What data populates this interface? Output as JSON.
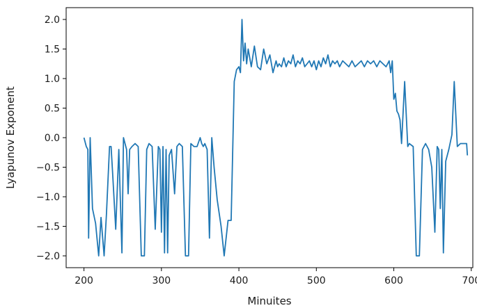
{
  "chart_data": {
    "type": "line",
    "title": "",
    "xlabel": "Minuites",
    "ylabel": "Lyapunov Exponent",
    "xlim": [
      177,
      702
    ],
    "ylim": [
      -2.2,
      2.2
    ],
    "xticks": [
      200,
      300,
      400,
      500,
      600,
      700
    ],
    "xtick_labels": [
      "200",
      "300",
      "400",
      "500",
      "600",
      "700"
    ],
    "yticks": [
      2.0,
      1.5,
      1.0,
      0.5,
      0.0,
      -0.5,
      -1.0,
      -1.5,
      -2.0
    ],
    "ytick_labels": [
      "2.0",
      "1.5",
      "1.0",
      "0.5",
      "0.0",
      "−0.5",
      "−1.0",
      "−1.5",
      "−2.0"
    ],
    "grid": false,
    "legend": false,
    "series": [
      {
        "color": "#1f77b4",
        "x": [
          200,
          203,
          205,
          206,
          208,
          211,
          215,
          219,
          222,
          226,
          229,
          233,
          235,
          237,
          241,
          245,
          249,
          251,
          253,
          255,
          257,
          259,
          262,
          266,
          270,
          274,
          278,
          281,
          284,
          288,
          292,
          296,
          298,
          300,
          302,
          304,
          306,
          308,
          310,
          313,
          317,
          320,
          323,
          327,
          331,
          335,
          338,
          342,
          346,
          350,
          352,
          354,
          356,
          359,
          362,
          365,
          368,
          372,
          377,
          381,
          386,
          390,
          394,
          397,
          400,
          402,
          404,
          406,
          408,
          410,
          412,
          416,
          420,
          424,
          428,
          432,
          436,
          440,
          444,
          448,
          450,
          452,
          455,
          458,
          461,
          464,
          467,
          470,
          473,
          476,
          479,
          482,
          485,
          488,
          491,
          494,
          497,
          500,
          503,
          506,
          509,
          512,
          515,
          518,
          521,
          524,
          527,
          530,
          534,
          538,
          542,
          546,
          550,
          554,
          558,
          562,
          566,
          570,
          574,
          578,
          582,
          586,
          590,
          594,
          596,
          598,
          600,
          602,
          604,
          606,
          608,
          610,
          614,
          618,
          620,
          625,
          629,
          633,
          637,
          641,
          645,
          649,
          653,
          656,
          658,
          660,
          662,
          664,
          667,
          671,
          675,
          678,
          682,
          686,
          690,
          694,
          695
        ],
        "y": [
          0.0,
          -0.15,
          -0.2,
          -1.7,
          0.0,
          -1.2,
          -1.45,
          -2.0,
          -1.35,
          -2.0,
          -1.3,
          -0.15,
          -0.15,
          -0.6,
          -1.55,
          -0.2,
          -1.95,
          0.0,
          -0.1,
          -0.2,
          -0.95,
          -0.2,
          -0.15,
          -0.1,
          -0.15,
          -2.0,
          -2.0,
          -0.2,
          -0.1,
          -0.15,
          -1.55,
          -0.15,
          -0.2,
          -1.6,
          -0.15,
          -1.95,
          -0.2,
          -1.95,
          -0.3,
          -0.2,
          -0.95,
          -0.15,
          -0.1,
          -0.15,
          -2.0,
          -2.0,
          -0.1,
          -0.15,
          -0.15,
          0.0,
          -0.1,
          -0.15,
          -0.1,
          -0.2,
          -1.7,
          0.0,
          -0.5,
          -1.05,
          -1.5,
          -2.0,
          -1.4,
          -1.4,
          0.95,
          1.15,
          1.2,
          1.1,
          2.0,
          1.3,
          1.6,
          1.25,
          1.5,
          1.2,
          1.55,
          1.2,
          1.15,
          1.5,
          1.25,
          1.4,
          1.1,
          1.3,
          1.2,
          1.25,
          1.2,
          1.35,
          1.2,
          1.3,
          1.25,
          1.4,
          1.2,
          1.3,
          1.25,
          1.35,
          1.2,
          1.25,
          1.3,
          1.2,
          1.3,
          1.15,
          1.3,
          1.2,
          1.35,
          1.25,
          1.4,
          1.2,
          1.3,
          1.25,
          1.3,
          1.2,
          1.3,
          1.25,
          1.2,
          1.3,
          1.2,
          1.25,
          1.3,
          1.2,
          1.3,
          1.25,
          1.3,
          1.2,
          1.3,
          1.25,
          1.2,
          1.3,
          1.1,
          1.3,
          0.65,
          0.75,
          0.45,
          0.4,
          0.3,
          -0.1,
          0.95,
          -0.15,
          -0.1,
          -0.15,
          -2.0,
          -2.0,
          -0.2,
          -0.1,
          -0.2,
          -0.5,
          -1.6,
          -0.15,
          -0.2,
          -1.2,
          -0.2,
          -1.95,
          -0.4,
          -0.2,
          0.05,
          0.95,
          -0.15,
          -0.1,
          -0.1,
          -0.1,
          -0.3
        ]
      }
    ]
  }
}
